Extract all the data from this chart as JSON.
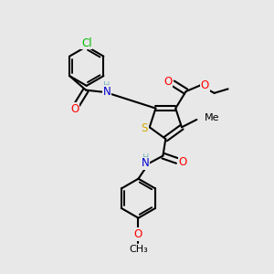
{
  "bg_color": "#e8e8e8",
  "atom_colors": {
    "C": "#000000",
    "N": "#0000cd",
    "O": "#ff0000",
    "S": "#ccaa00",
    "Cl": "#00bb00",
    "H": "#7ab8b8"
  },
  "bond_color": "#000000",
  "bond_width": 1.5,
  "font_size": 8.5
}
